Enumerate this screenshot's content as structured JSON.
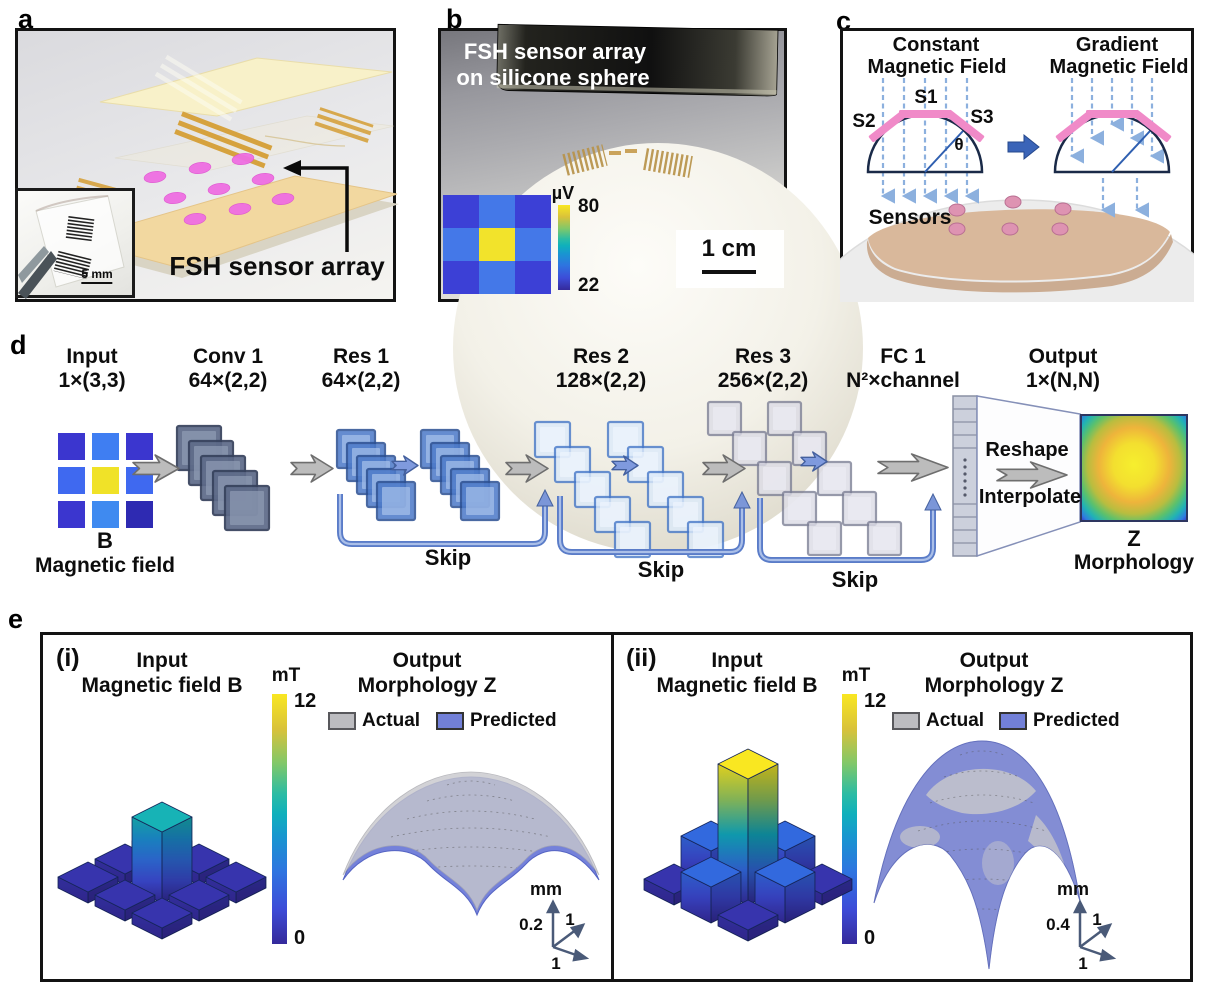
{
  "panel_a": {
    "label": "a",
    "annotation": "FSH sensor array",
    "inset_scale": "5 mm"
  },
  "panel_b": {
    "label": "b",
    "caption1": "FSH sensor array",
    "caption2": "on silicone sphere",
    "scale": "1 cm",
    "cbar_unit": "µV",
    "cbar_max": "80",
    "cbar_min": "22"
  },
  "panel_c": {
    "label": "c",
    "left_title1": "Constant",
    "left_title2": "Magnetic Field",
    "right_title1": "Gradient",
    "right_title2": "Magnetic Field",
    "s1": "S1",
    "s2": "S2",
    "s3": "S3",
    "theta": "θ",
    "sensors_label": "Sensors"
  },
  "panel_d": {
    "label": "d",
    "cols": [
      [
        "Input",
        "1×(3,3)"
      ],
      [
        "Conv 1",
        "64×(2,2)"
      ],
      [
        "Res 1",
        "64×(2,2)"
      ],
      [
        "Res 2",
        "128×(2,2)"
      ],
      [
        "Res 3",
        "256×(2,2)"
      ],
      [
        "FC 1",
        "N²×channel"
      ],
      [
        "Output",
        "1×(N,N)"
      ]
    ],
    "input_cap1": "B",
    "input_cap2": "Magnetic field",
    "skip1": "Skip",
    "skip2": "Skip",
    "skip3": "Skip",
    "reshape": "Reshape",
    "interpolate": "Interpolate",
    "out_cap1": "Z",
    "out_cap2": "Morphology"
  },
  "panel_e": {
    "label": "e",
    "i": {
      "tag": "(i)",
      "in1": "Input",
      "in2": "Magnetic field B",
      "out1": "Output",
      "out2": "Morphology Z",
      "cbar_unit": "mT",
      "cbar_max": "12",
      "cbar_min": "0",
      "legend_actual": "Actual",
      "legend_predicted": "Predicted",
      "axis_unit": "mm",
      "axis_z": "0.2",
      "axis_x": "1",
      "axis_y": "1"
    },
    "ii": {
      "tag": "(ii)",
      "in1": "Input",
      "in2": "Magnetic field B",
      "out1": "Output",
      "out2": "Morphology Z",
      "cbar_unit": "mT",
      "cbar_max": "12",
      "cbar_min": "0",
      "legend_actual": "Actual",
      "legend_predicted": "Predicted",
      "axis_unit": "mm",
      "axis_z": "0.4",
      "axis_x": "1",
      "axis_y": "1"
    }
  },
  "colors": {
    "predicted_blue": "#6d7bd9",
    "actual_gray": "#c7c7cc",
    "sensor_pink_render": "#ef6ee2",
    "sensor_pink_diagram": "#f08ac8",
    "gold_electrode": "#d6a23e",
    "substrate_tan": "#f2d8a0",
    "skip_arrow_blue": "#5a7cc8",
    "block_arrow_blue": "#3a64b8",
    "parula_min": "#352a9b",
    "parula_max": "#f9e721"
  },
  "chart_data": [
    {
      "id": "panel_b_heatmap",
      "type": "heatmap",
      "title": "FSH sensor array output on silicone sphere",
      "rows": 3,
      "cols": 3,
      "unit": "µV",
      "colorbar_range": [
        22,
        80
      ],
      "values": [
        [
          30,
          45,
          30
        ],
        [
          45,
          78,
          45
        ],
        [
          30,
          45,
          30
        ]
      ],
      "colors": [
        [
          "#3c40d6",
          "#4478e8",
          "#3c40d6"
        ],
        [
          "#4478e8",
          "#f2e32b",
          "#4478e8"
        ],
        [
          "#3c40d6",
          "#4478e8",
          "#3c40d6"
        ]
      ]
    },
    {
      "id": "panel_d_input_grid",
      "type": "heatmap",
      "title": "B Magnetic field (network input 1×(3,3))",
      "rows": 3,
      "cols": 3,
      "colors": [
        [
          "#3b36cf",
          "#3f7ef2",
          "#3b36cf"
        ],
        [
          "#3f69f0",
          "#f0e228",
          "#3f69f0"
        ],
        [
          "#3b36cf",
          "#3f8af0",
          "#2e2ab2"
        ]
      ]
    },
    {
      "id": "panel_e_i_input_bars",
      "type": "bar3d",
      "title": "Input Magnetic field B (i)",
      "unit": "mT",
      "zlim": [
        0,
        12
      ],
      "values": [
        [
          0.5,
          0.5,
          0.5
        ],
        [
          0.5,
          6.5,
          0.5
        ],
        [
          0.5,
          0.5,
          0.5
        ]
      ]
    },
    {
      "id": "panel_e_ii_input_bars",
      "type": "bar3d",
      "title": "Input Magnetic field B (ii)",
      "unit": "mT",
      "zlim": [
        0,
        12
      ],
      "values": [
        [
          0.5,
          3,
          0.5
        ],
        [
          3,
          12,
          3
        ],
        [
          0.5,
          3,
          0.5
        ]
      ]
    },
    {
      "id": "panel_e_i_surface",
      "type": "surface",
      "title": "Output Morphology Z (i)",
      "series": [
        "Actual",
        "Predicted"
      ],
      "z_tick_mm": 0.2,
      "x_tick": 1,
      "y_tick": 1
    },
    {
      "id": "panel_e_ii_surface",
      "type": "surface",
      "title": "Output Morphology Z (ii)",
      "series": [
        "Actual",
        "Predicted"
      ],
      "z_tick_mm": 0.4,
      "x_tick": 1,
      "y_tick": 1
    }
  ]
}
